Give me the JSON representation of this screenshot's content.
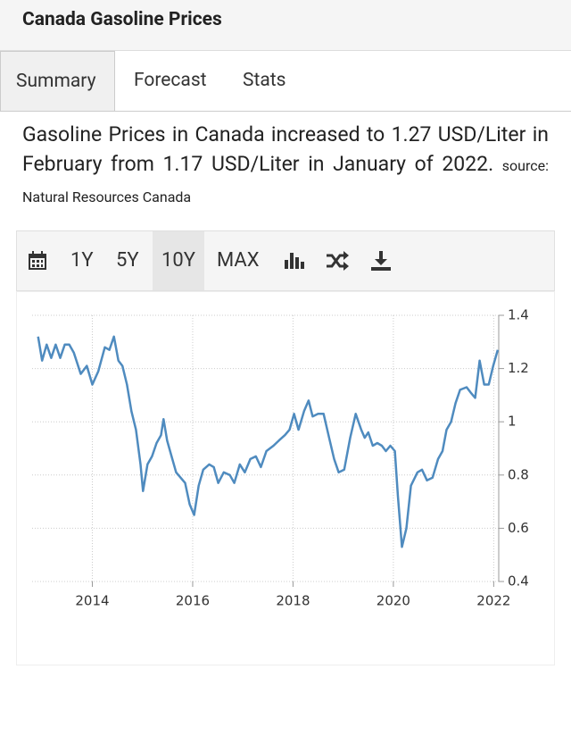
{
  "header": {
    "title": "Canada Gasoline Prices"
  },
  "tabs": [
    "Summary",
    "Forecast",
    "Stats"
  ],
  "description": {
    "text": "Gasoline Prices in Canada increased to 1.27 USD/Liter in February from 1.17 USD/Liter in January of 2022.",
    "source": "source: Natural Resources Canada"
  },
  "toolbar": [
    "1Y",
    "5Y",
    "10Y",
    "MAX"
  ],
  "chart_data": {
    "type": "line",
    "color": "#4f8bbf",
    "grid": true,
    "x": [
      2012.92,
      2013.0,
      2013.09,
      2013.18,
      2013.27,
      2013.36,
      2013.45,
      2013.54,
      2013.63,
      2013.77,
      2013.89,
      2014.0,
      2014.12,
      2014.25,
      2014.34,
      2014.43,
      2014.52,
      2014.6,
      2014.69,
      2014.78,
      2014.87,
      2014.96,
      2015.01,
      2015.1,
      2015.19,
      2015.28,
      2015.37,
      2015.42,
      2015.49,
      2015.58,
      2015.67,
      2015.76,
      2015.85,
      2015.94,
      2016.03,
      2016.12,
      2016.21,
      2016.33,
      2016.42,
      2016.51,
      2016.62,
      2016.74,
      2016.83,
      2016.94,
      2017.04,
      2017.15,
      2017.26,
      2017.36,
      2017.47,
      2017.61,
      2017.72,
      2017.84,
      2017.93,
      2018.02,
      2018.11,
      2018.22,
      2018.31,
      2018.39,
      2018.5,
      2018.61,
      2018.72,
      2018.82,
      2018.91,
      2019.02,
      2019.14,
      2019.25,
      2019.36,
      2019.43,
      2019.5,
      2019.59,
      2019.68,
      2019.77,
      2019.85,
      2019.94,
      2020.03,
      2020.09,
      2020.17,
      2020.26,
      2020.35,
      2020.48,
      2020.57,
      2020.67,
      2020.78,
      2020.89,
      2020.98,
      2021.06,
      2021.15,
      2021.24,
      2021.33,
      2021.46,
      2021.54,
      2021.63,
      2021.72,
      2021.81,
      2021.9,
      2021.99,
      2022.08
    ],
    "values": [
      1.32,
      1.23,
      1.29,
      1.24,
      1.29,
      1.24,
      1.29,
      1.29,
      1.26,
      1.18,
      1.21,
      1.14,
      1.19,
      1.28,
      1.27,
      1.32,
      1.23,
      1.21,
      1.14,
      1.04,
      0.97,
      0.84,
      0.74,
      0.84,
      0.87,
      0.92,
      0.95,
      1.01,
      0.93,
      0.87,
      0.81,
      0.79,
      0.77,
      0.69,
      0.65,
      0.76,
      0.82,
      0.84,
      0.83,
      0.77,
      0.81,
      0.8,
      0.77,
      0.84,
      0.81,
      0.86,
      0.87,
      0.83,
      0.89,
      0.91,
      0.93,
      0.95,
      0.97,
      1.03,
      0.97,
      1.04,
      1.08,
      1.02,
      1.03,
      1.03,
      0.94,
      0.86,
      0.81,
      0.82,
      0.94,
      1.03,
      0.97,
      0.94,
      0.96,
      0.91,
      0.92,
      0.91,
      0.89,
      0.91,
      0.89,
      0.72,
      0.53,
      0.6,
      0.76,
      0.81,
      0.82,
      0.78,
      0.79,
      0.86,
      0.89,
      0.97,
      1.0,
      1.07,
      1.12,
      1.13,
      1.11,
      1.09,
      1.23,
      1.14,
      1.14,
      1.21,
      1.27
    ],
    "xlim": [
      2012.8,
      2022.1
    ],
    "xticks": [
      2014,
      2016,
      2018,
      2020,
      2022
    ],
    "ylim": [
      0.4,
      1.4
    ],
    "yticks": [
      1.4,
      1.2,
      1,
      0.8,
      0.6,
      0.4
    ]
  }
}
